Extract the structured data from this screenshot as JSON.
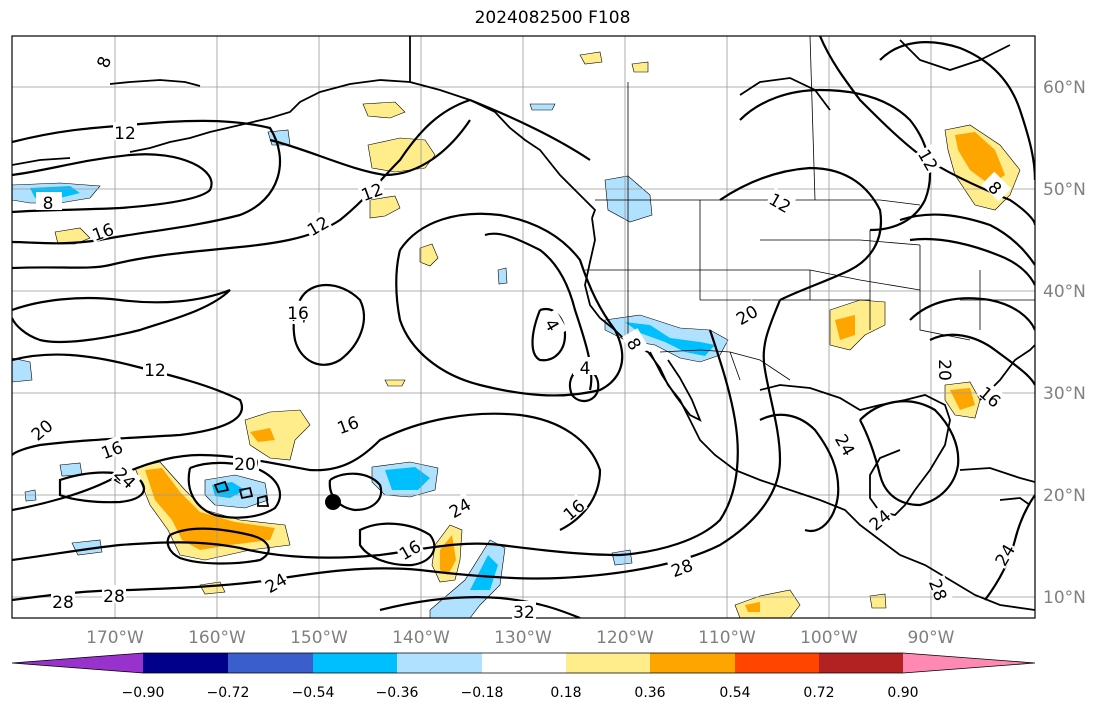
{
  "title": "2024082500 F108",
  "lat_labels": [
    "60°N",
    "50°N",
    "40°N",
    "30°N",
    "20°N",
    "10°N"
  ],
  "lon_labels": [
    "170°W",
    "160°W",
    "150°W",
    "140°W",
    "130°W",
    "120°W",
    "110°W",
    "100°W",
    "90°W"
  ],
  "colorbar": {
    "ticks": [
      "−0.90",
      "−0.72",
      "−0.54",
      "−0.36",
      "−0.18",
      "0.18",
      "0.36",
      "0.54",
      "0.72",
      "0.90"
    ],
    "colors": [
      "#9932cc",
      "#00008b",
      "#3a5fcd",
      "#00bfff",
      "#b0e2ff",
      "#ffffff",
      "#ffec8b",
      "#ffa500",
      "#ff4500",
      "#b22222",
      "#ff89b2"
    ]
  },
  "contour_labels": [
    "8",
    "12",
    "8",
    "12",
    "16",
    "12",
    "16",
    "20",
    "16",
    "12",
    "16",
    "4",
    "4",
    "8",
    "12",
    "20",
    "20",
    "24",
    "16",
    "24",
    "16",
    "24",
    "20",
    "28",
    "28",
    "28",
    "16",
    "32",
    "8",
    "8",
    "12",
    "20",
    "16",
    "24",
    "24",
    "24",
    "28",
    "24"
  ],
  "marker": "hurricane-center-dot"
}
